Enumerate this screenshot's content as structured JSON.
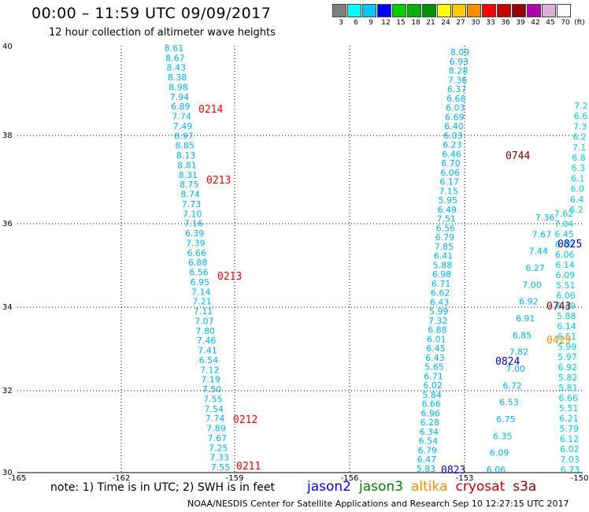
{
  "header": {
    "title": "00:00 – 11:59 UTC 09/09/2017",
    "subtitle": "12 hour collection of altimeter wave heights"
  },
  "color_scale": {
    "unit": "(ft)",
    "ticks": [
      "3",
      "6",
      "9",
      "12",
      "15",
      "18",
      "21",
      "24",
      "27",
      "30",
      "33",
      "36",
      "39",
      "42",
      "45",
      "70"
    ],
    "colors": [
      "#808080",
      "#00ffff",
      "#00c8ff",
      "#0000ff",
      "#00d000",
      "#00b000",
      "#009000",
      "#ffff00",
      "#ffc800",
      "#ff8c00",
      "#ff0000",
      "#c80000",
      "#960000",
      "#b000b0",
      "#d8b0d8",
      "#ffffff"
    ]
  },
  "axes": {
    "lat_labels": [
      "40",
      "38",
      "36",
      "34",
      "32",
      "30"
    ],
    "lon_labels": [
      "-165",
      "-162",
      "-159",
      "-156",
      "-153",
      "-150"
    ]
  },
  "tracks": {
    "left": [
      "8.61",
      "8.67",
      "8.43",
      "8.38",
      "8.98",
      "7.94",
      "6.89",
      "7.74",
      "7.49",
      "8.97",
      "8.85",
      "8.13",
      "8.81",
      "8.31",
      "8.75",
      "8.74",
      "7.73",
      "7.10",
      "7.16",
      "6.39",
      "7.39",
      "6.66",
      "6.88",
      "6.56",
      "6.95",
      "7.14",
      "7.21",
      "7.11",
      "7.07",
      "7.80",
      "7.46",
      "7.41",
      "6.54",
      "7.12",
      "7.19",
      "7.50",
      "7.55",
      "7.54",
      "7.74",
      "7.89",
      "7.67",
      "7.25",
      "7.33",
      "7.55"
    ],
    "right_a": [
      "8.09",
      "6.93",
      "8.28",
      "7.36",
      "6.37",
      "6.68",
      "6.03",
      "6.69",
      "6.40",
      "6.03",
      "6.23",
      "6.46",
      "6.70",
      "6.06",
      "6.17",
      "7.15",
      "5.95",
      "6.49",
      "7.51",
      "6.56",
      "6.79",
      "7.85",
      "6.41",
      "5.88",
      "6.98",
      "6.71",
      "6.62",
      "6.43",
      "5.99",
      "7.32",
      "6.88",
      "6.01",
      "6.45",
      "6.43",
      "5.65",
      "6.71",
      "6.02",
      "5.84",
      "6.66",
      "6.96",
      "6.28",
      "6.34",
      "6.54",
      "6.79",
      "6.47",
      "5.83"
    ],
    "right_b": [
      "7.62",
      "7.04",
      "6.45",
      "6.09",
      "6.06",
      "6.14",
      "6.09",
      "5.51",
      "6.06",
      "6.49",
      "5.88",
      "6.14",
      "6.51",
      "5.99",
      "5.97",
      "6.92",
      "5.82",
      "5.81",
      "6.66",
      "5.51",
      "6.21",
      "5.79",
      "6.12",
      "6.02",
      "7.03",
      "6.73"
    ],
    "right_c": [
      "7.36",
      "7.67",
      "7.44",
      "6.27",
      "7.00",
      "6.92",
      "6.91",
      "6.85",
      "7.82",
      "7.00",
      "6.72",
      "6.53",
      "6.75",
      "6.35",
      "6.09",
      "6.06"
    ],
    "right_d": [
      "7.2",
      "6.6",
      "7.3",
      "6.2",
      "7.1",
      "6.8",
      "6.3",
      "6.1",
      "6.0",
      "6.4",
      "6.2"
    ]
  },
  "time_labels": [
    {
      "text": "0214",
      "color": "#ff0000"
    },
    {
      "text": "0213",
      "color": "#ff0000"
    },
    {
      "text": "0213",
      "color": "#ff0000"
    },
    {
      "text": "0212",
      "color": "#ff0000"
    },
    {
      "text": "0211",
      "color": "#ff0000"
    },
    {
      "text": "0744",
      "color": "#800000"
    },
    {
      "text": "0825",
      "color": "#0000cc"
    },
    {
      "text": "0743",
      "color": "#800000"
    },
    {
      "text": "0429",
      "color": "#ff8c00"
    },
    {
      "text": "0824",
      "color": "#0000cc"
    },
    {
      "text": "0823",
      "color": "#0000cc"
    }
  ],
  "note": "note:  1) Time is in UTC;  2) SWH is in feet",
  "legend": [
    {
      "name": "jason2",
      "color": "#0000ff"
    },
    {
      "name": "jason3",
      "color": "#008000"
    },
    {
      "name": "altika",
      "color": "#ff8c00"
    },
    {
      "name": "cryosat",
      "color": "#cc0000"
    },
    {
      "name": "s3a",
      "color": "#8b0000"
    }
  ],
  "credit": "NOAA/NESDIS Center for Satellite Applications and Research    Sep 10 12:27:15 UTC 2017"
}
